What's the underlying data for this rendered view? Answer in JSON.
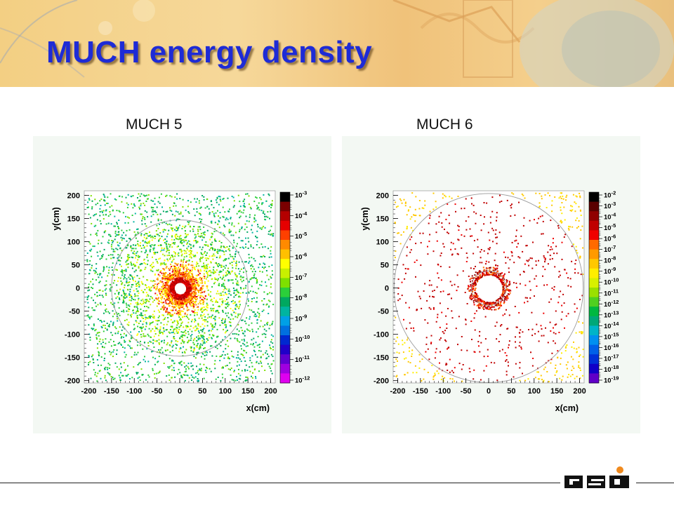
{
  "slide": {
    "title": "MUCH energy density"
  },
  "chart_data": [
    {
      "type": "heatmap",
      "title": "MUCH 5",
      "xlabel": "x(cm)",
      "ylabel": "y(cm)",
      "xlim": [
        -210,
        210
      ],
      "ylim": [
        -205,
        210
      ],
      "xticks": [
        "-200",
        "-150",
        "-100",
        "-50",
        "0",
        "50",
        "100",
        "150",
        "200"
      ],
      "yticks": [
        "200",
        "150",
        "100",
        "50",
        "0",
        "-50",
        "-100",
        "-150",
        "-200"
      ],
      "colorbar_labels": [
        "10^-3",
        "10^-4",
        "10^-5",
        "10^-6",
        "10^-7",
        "10^-8",
        "10^-9",
        "10^-10",
        "10^-11",
        "10^-12"
      ],
      "colorbar_colors": [
        "#000000",
        "#7a0000",
        "#b40000",
        "#e60000",
        "#ff4000",
        "#ff8a00",
        "#ffc000",
        "#ffff00",
        "#c8f000",
        "#7ee000",
        "#2bcf3a",
        "#00a860",
        "#00b4a0",
        "#00a0e6",
        "#0070e0",
        "#0028d0",
        "#2000c8",
        "#6000d0",
        "#a000e0",
        "#e000f0"
      ],
      "inner_circle_radius_cm": 14,
      "outer_circle_radius_cm": 150
    },
    {
      "type": "heatmap",
      "title": "MUCH 6",
      "xlabel": "x(cm)",
      "ylabel": "y(cm)",
      "xlim": [
        -210,
        210
      ],
      "ylim": [
        -205,
        210
      ],
      "xticks": [
        "-200",
        "-150",
        "-100",
        "-50",
        "0",
        "50",
        "100",
        "150",
        "200"
      ],
      "yticks": [
        "200",
        "150",
        "100",
        "50",
        "0",
        "-50",
        "-100",
        "-150",
        "-200"
      ],
      "colorbar_labels": [
        "10^-2",
        "10^-3",
        "10^-4",
        "10^-5",
        "10^-6",
        "10^-7",
        "10^-8",
        "10^-9",
        "10^-10",
        "10^-11",
        "10^-12",
        "10^-13",
        "10^-14",
        "10^-15",
        "10^-16",
        "10^-17",
        "10^-18",
        "10^-19"
      ],
      "colorbar_colors": [
        "#000000",
        "#5a0000",
        "#900000",
        "#c00000",
        "#f00000",
        "#ff6a00",
        "#ff9a00",
        "#ffc800",
        "#ffee00",
        "#d8f000",
        "#9ae000",
        "#50d020",
        "#00b840",
        "#00a878",
        "#00b4c8",
        "#0090f0",
        "#0060e8",
        "#0030d8",
        "#1000c8",
        "#6000c8"
      ],
      "inner_circle_radius_cm": 30,
      "outer_circle_radius_cm": 208
    }
  ],
  "footer": {
    "logo": "GSI"
  }
}
